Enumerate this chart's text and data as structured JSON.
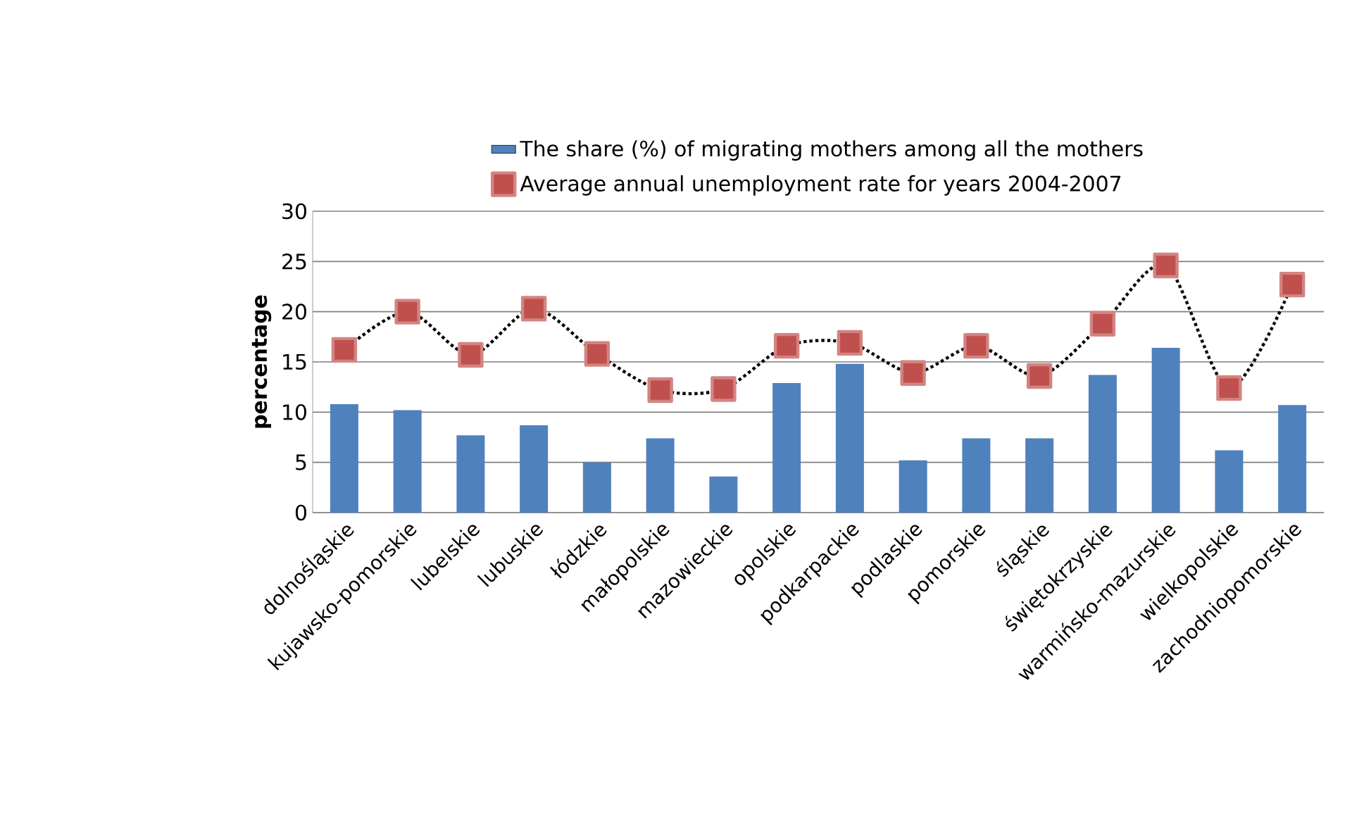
{
  "chart_data": {
    "type": "bar",
    "ylabel": "percentage",
    "categories": [
      "dolnośląskie",
      "kujawsko-pomorskie",
      "lubelskie",
      "lubuskie",
      "łódzkie",
      "małopolskie",
      "mazowieckie",
      "opolskie",
      "podkarpackie",
      "podlaskie",
      "pomorskie",
      "śląskie",
      "świętokrzyskie",
      "warmińsko-mazurskie",
      "wielkopolskie",
      "zachodniopomorskie"
    ],
    "series": [
      {
        "name": "The share (%) of migrating mothers among all the mothers",
        "color": "#4f81bd",
        "values": [
          10.8,
          10.2,
          7.7,
          8.7,
          5.0,
          7.4,
          3.6,
          12.9,
          14.8,
          5.2,
          7.4,
          7.4,
          13.7,
          16.4,
          6.2,
          10.7
        ]
      },
      {
        "name": "Average annual unemployment rate for years 2004-2007",
        "type": "line",
        "color": "#c0504d",
        "marker": "square",
        "line_style": "dotted",
        "values": [
          16.2,
          20.0,
          15.7,
          20.3,
          15.8,
          12.2,
          12.3,
          16.6,
          16.9,
          13.9,
          16.6,
          13.6,
          18.8,
          24.6,
          12.4,
          22.7
        ]
      }
    ],
    "ylim": [
      0,
      30
    ],
    "yticks": [
      0,
      5,
      10,
      15,
      20,
      25,
      30
    ],
    "grid": "y",
    "legend": "top"
  }
}
